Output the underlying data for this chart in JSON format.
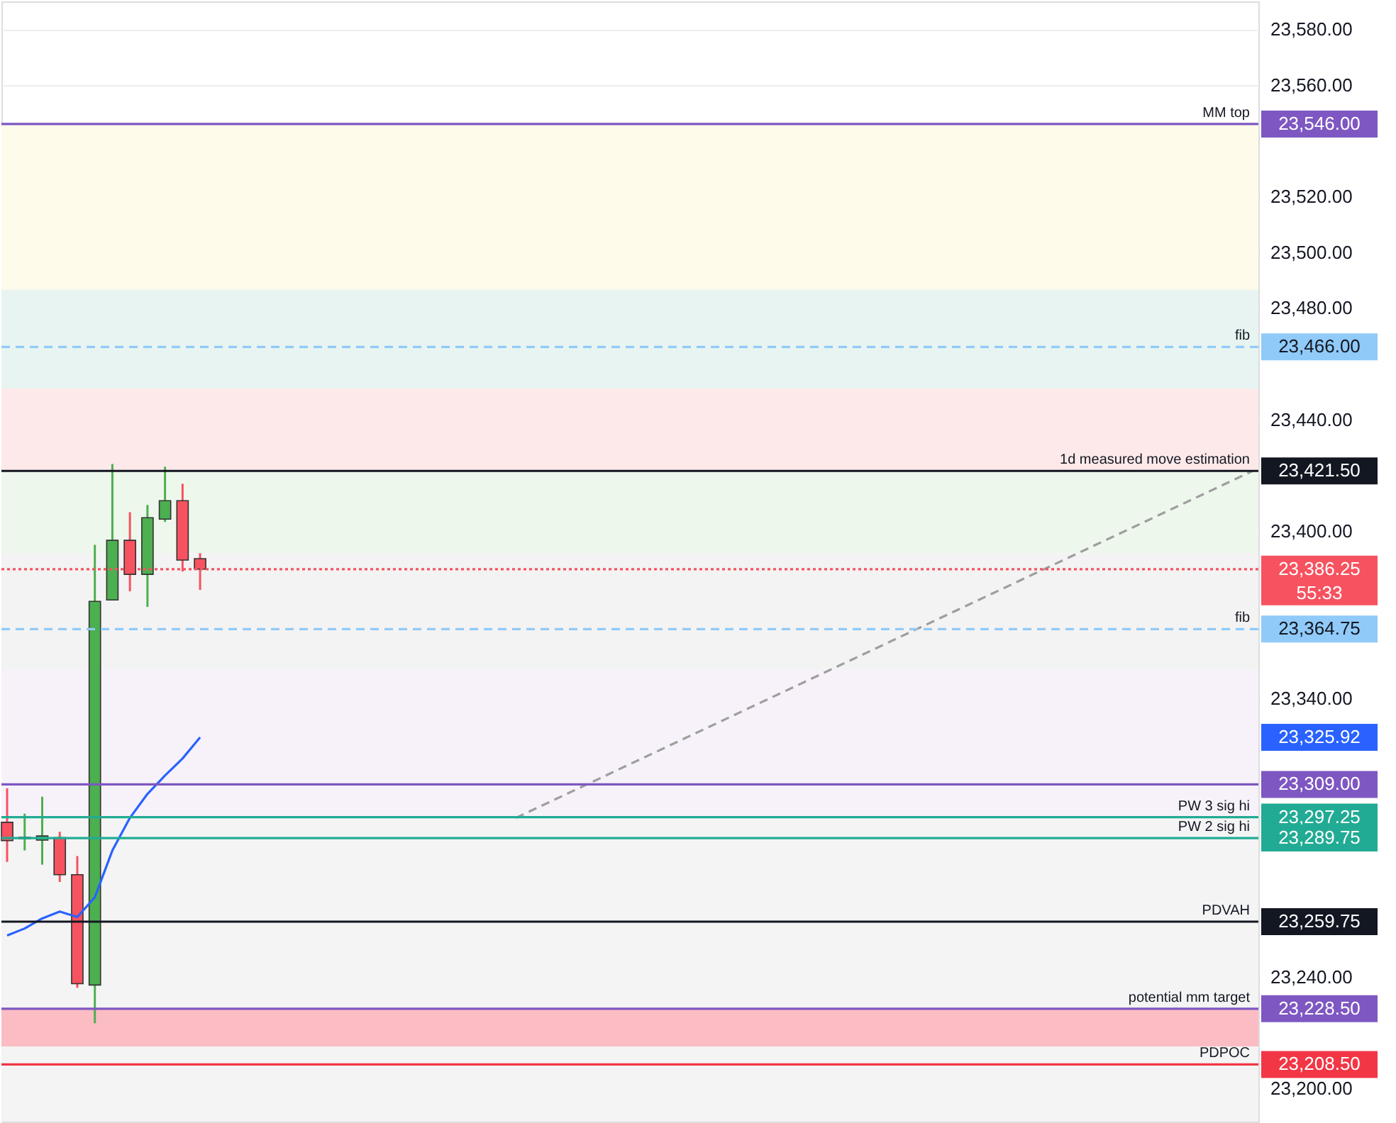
{
  "chart_data": {
    "type": "candlestick",
    "categories": [
      null,
      null,
      null,
      null,
      null,
      null,
      null,
      null,
      null,
      null,
      null,
      null,
      null,
      null,
      null,
      null,
      null,
      null,
      null,
      null,
      null,
      null,
      null,
      null,
      null,
      null,
      null,
      null,
      null,
      null,
      null,
      null,
      null,
      null,
      null,
      null,
      null,
      null,
      null,
      null,
      null,
      null,
      null,
      null,
      null,
      null,
      null,
      null,
      null,
      null,
      null,
      null,
      null,
      null,
      null,
      null,
      null,
      null,
      null,
      null,
      null,
      null,
      null,
      null,
      null,
      null,
      null,
      null,
      null,
      null,
      null,
      null
    ],
    "series": [
      {
        "type": "candlestick",
        "colors": [
          "#f7525f",
          "#4caf50",
          "#4caf50",
          "#f7525f",
          "#f7525f",
          "#4caf50",
          "#4caf50",
          "#f7525f",
          "#4caf50",
          "#4caf50",
          "#f7525f",
          "#f7525f",
          null,
          null,
          null,
          null,
          null,
          null,
          null,
          null,
          null,
          null,
          null,
          null,
          null,
          null,
          null,
          null,
          null,
          null,
          null,
          null,
          null,
          null,
          null,
          null,
          null,
          null,
          null,
          null,
          null,
          null,
          null,
          null,
          null,
          null,
          null,
          null,
          null,
          null,
          null,
          null,
          null,
          null,
          null,
          null,
          null,
          null,
          null,
          null,
          null,
          null,
          null,
          null,
          null,
          null,
          null,
          null,
          null,
          null,
          null,
          null
        ],
        "ohlc": [
          [
            23295.4,
            23307.6,
            23281.2,
            23288.8
          ],
          [
            23289.5,
            23298.5,
            23285.3,
            23290
          ],
          [
            23289,
            23304.6,
            23280.2,
            23290.5
          ],
          [
            23289.9,
            23292,
            23274,
            23276.6
          ],
          [
            23276.6,
            23283.3,
            23236,
            23237.5
          ],
          [
            23237,
            23395,
            23223.3,
            23374.7
          ],
          [
            23375.2,
            23424,
            23375.2,
            23396.6
          ],
          [
            23396.6,
            23406.7,
            23378.3,
            23384.4
          ],
          [
            23384.4,
            23409.3,
            23372.7,
            23404.7
          ],
          [
            23404.2,
            23423,
            23403.2,
            23410.8
          ],
          [
            23410.8,
            23416.9,
            23385.4,
            23389.5
          ],
          [
            23390,
            23392,
            23378.8,
            23386.25
          ],
          null,
          null,
          null,
          null,
          null,
          null,
          null,
          null,
          null,
          null,
          null,
          null,
          null,
          null,
          null,
          null,
          null,
          null,
          null,
          null,
          null,
          null,
          null,
          null,
          null,
          null,
          null,
          null,
          null,
          null,
          null,
          null,
          null,
          null,
          null,
          null,
          null,
          null,
          null,
          null,
          null,
          null,
          null,
          null,
          null,
          null,
          null,
          null,
          null,
          null,
          null,
          null,
          null,
          null,
          null,
          null,
          null,
          null,
          null,
          null
        ]
      },
      {
        "type": "line",
        "color": "#2962ff",
        "values": [
          23254.8,
          23257.3,
          23260.9,
          23263.4,
          23261.4,
          23268.5,
          23285.3,
          23297,
          23305.6,
          23312.2,
          23318.3,
          23325.92,
          null,
          null,
          null,
          null,
          null,
          null,
          null,
          null,
          null,
          null,
          null,
          null,
          null,
          null,
          null,
          null,
          null,
          null,
          null,
          null,
          null,
          null,
          null,
          null,
          null,
          null,
          null,
          null,
          null,
          null,
          null,
          null,
          null,
          null,
          null,
          null,
          null,
          null,
          null,
          null,
          null,
          null,
          null,
          null,
          null,
          null,
          null,
          null,
          null,
          null,
          null,
          null,
          null,
          null,
          null,
          null,
          null,
          null,
          null,
          null
        ]
      },
      {
        "type": "line",
        "color": "#9e9e9e",
        "line_style": "dashed",
        "values": [
          null,
          null,
          null,
          null,
          null,
          null,
          null,
          null,
          null,
          null,
          null,
          null,
          null,
          null,
          null,
          null,
          null,
          null,
          null,
          null,
          null,
          null,
          null,
          null,
          null,
          null,
          null,
          null,
          null,
          23297,
          null,
          null,
          null,
          null,
          null,
          null,
          null,
          null,
          null,
          null,
          null,
          null,
          null,
          null,
          null,
          null,
          null,
          null,
          null,
          null,
          null,
          null,
          null,
          null,
          null,
          null,
          null,
          null,
          null,
          null,
          null,
          null,
          null,
          null,
          null,
          null,
          null,
          null,
          null,
          null,
          null,
          23421.5
        ]
      }
    ],
    "ylim": [
      23188,
      23590
    ],
    "yticks": [
      {
        "value": 23200,
        "label": "23,200.00"
      },
      {
        "value": 23240,
        "label": "23,240.00"
      },
      {
        "value": 23340,
        "label": "23,340.00"
      },
      {
        "value": 23400,
        "label": "23,400.00"
      },
      {
        "value": 23440,
        "label": "23,440.00"
      },
      {
        "value": 23480,
        "label": "23,480.00"
      },
      {
        "value": 23500,
        "label": "23,500.00"
      },
      {
        "value": 23520,
        "label": "23,520.00"
      },
      {
        "value": 23560,
        "label": "23,560.00"
      },
      {
        "value": 23580,
        "label": "23,580.00"
      }
    ],
    "tick_labels": "y",
    "grid": "y",
    "bands": [
      {
        "axis": "y",
        "from": 23486.5,
        "to": 23546,
        "label": null,
        "color": "#fffbea"
      },
      {
        "axis": "y",
        "from": 23451,
        "to": 23486.5,
        "label": null,
        "color": "#e8f4f1"
      },
      {
        "axis": "y",
        "from": 23421.5,
        "to": 23451,
        "label": null,
        "color": "#fde9e9"
      },
      {
        "axis": "y",
        "from": 23392,
        "to": 23421.5,
        "label": null,
        "color": "#eef7ec"
      },
      {
        "axis": "y",
        "from": 23350,
        "to": 23392,
        "label": null,
        "color": "#f3f3f3"
      },
      {
        "axis": "y",
        "from": 23297.25,
        "to": 23350,
        "label": null,
        "color": "#f7f2fa"
      },
      {
        "axis": "y",
        "from": 23188,
        "to": 23297.25,
        "label": null,
        "color": "#f4f4f4"
      },
      {
        "axis": "y",
        "from": 23215,
        "to": 23228.5,
        "label": null,
        "color": "#fbbcc4"
      }
    ],
    "ref_lines": [
      {
        "axis": "y",
        "value": 23546,
        "label": "MM top",
        "color": "#7e57c2",
        "line_style": "solid"
      },
      {
        "axis": "y",
        "value": 23466,
        "label": "fib",
        "color": "#90caf9",
        "line_style": "dashed"
      },
      {
        "axis": "y",
        "value": 23421.5,
        "label": "1d measured move estimation",
        "color": "#131722",
        "line_style": "solid"
      },
      {
        "axis": "y",
        "value": 23386.25,
        "label": null,
        "color": "#f7525f",
        "line_style": "dotted"
      },
      {
        "axis": "y",
        "value": 23364.75,
        "label": "fib",
        "color": "#90caf9",
        "line_style": "dashed"
      },
      {
        "axis": "y",
        "value": 23309,
        "label": null,
        "color": "#7e57c2",
        "line_style": "solid"
      },
      {
        "axis": "y",
        "value": 23297.25,
        "label": "PW 3 sig hi",
        "color": "#22ab94",
        "line_style": "solid"
      },
      {
        "axis": "y",
        "value": 23289.75,
        "label": "PW 2 sig hi",
        "color": "#22ab94",
        "line_style": "solid"
      },
      {
        "axis": "y",
        "value": 23259.75,
        "label": "PDVAH",
        "color": "#131722",
        "line_style": "solid"
      },
      {
        "axis": "y",
        "value": 23228.5,
        "label": "potential mm target",
        "color": "#7e57c2",
        "line_style": "solid"
      },
      {
        "axis": "y",
        "value": 23208.5,
        "label": "PDPOC",
        "color": "#f23645",
        "line_style": "solid"
      }
    ],
    "annotations": [
      "23,546.00",
      "23,466.00",
      "23,421.50",
      "23,386.25",
      "23,364.75",
      "23,309.00",
      "23,297.25",
      "23,289.75",
      "23,259.75",
      "23,228.50",
      "23,208.50",
      "23,325.92",
      "55:33"
    ]
  }
}
